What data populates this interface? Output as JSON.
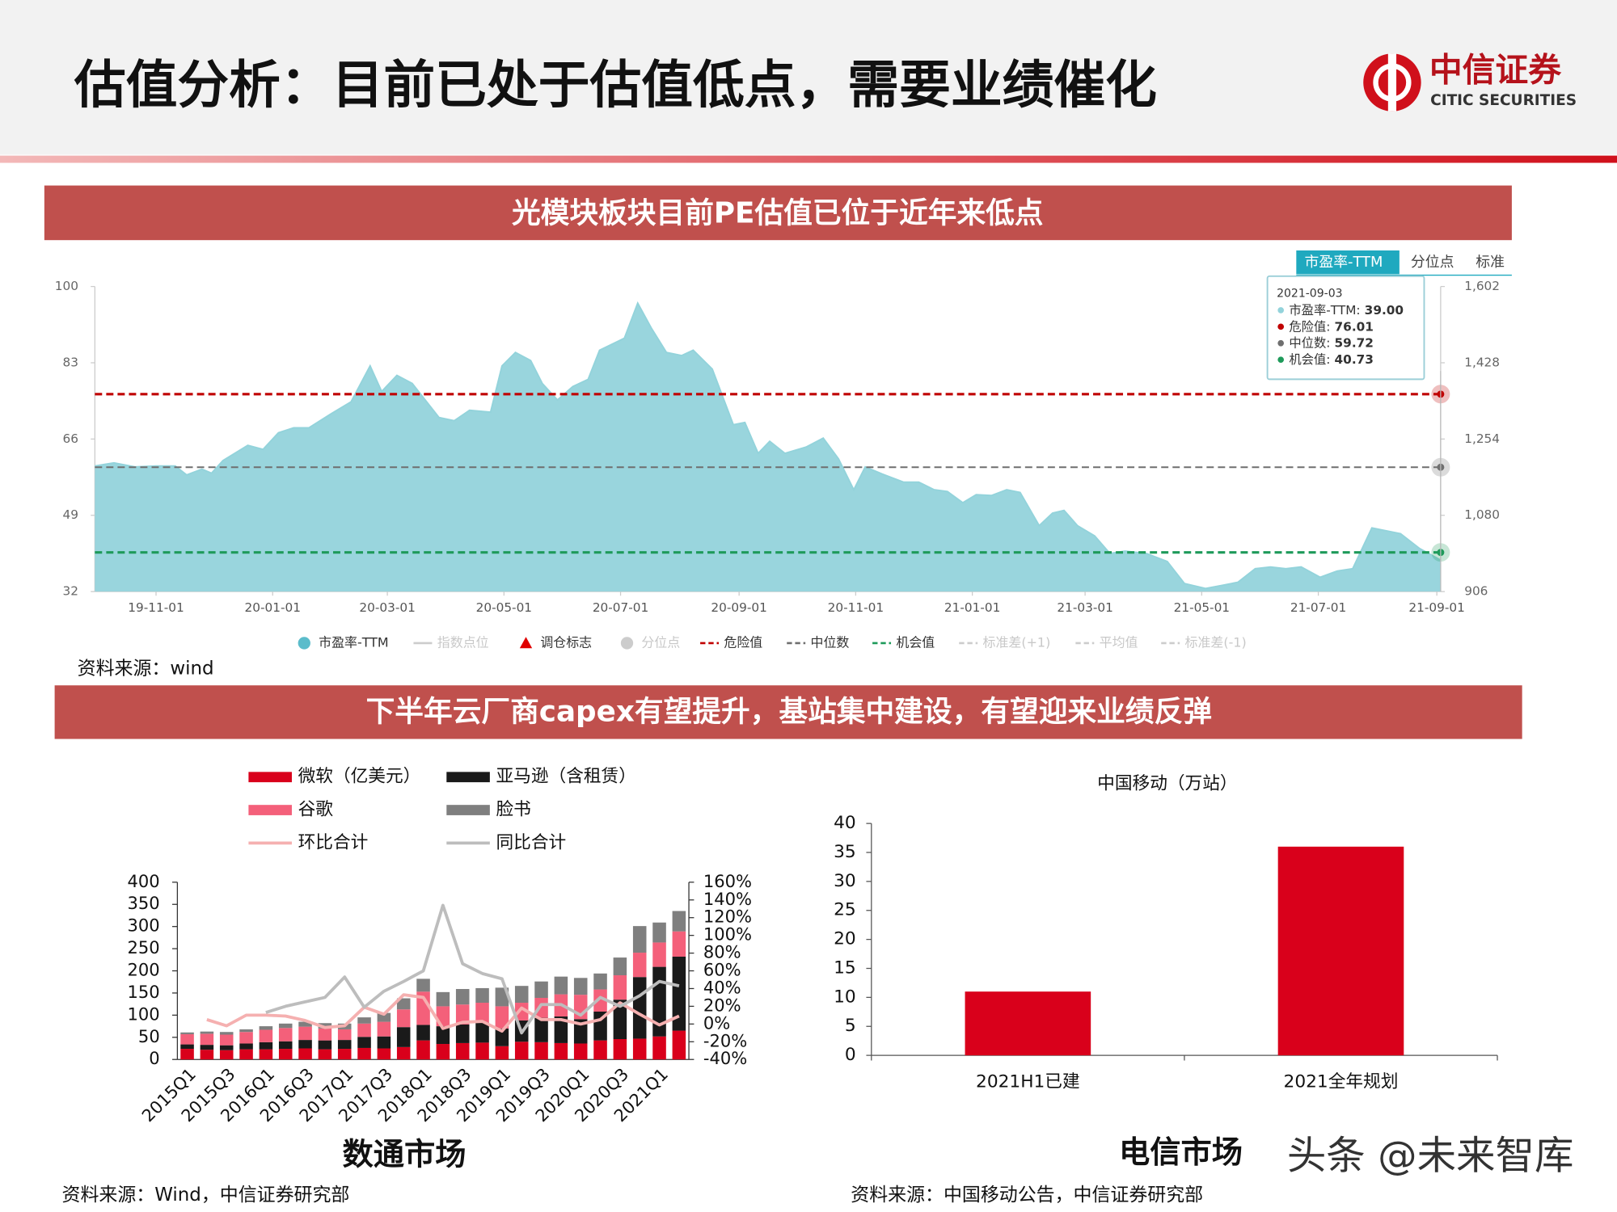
{
  "header": {
    "title": "估值分析：目前已处于估值低点，需要业绩催化",
    "logo_cn": "中信证券",
    "logo_en": "CITIC SECURITIES"
  },
  "sections": [
    {
      "banner": "光模块板块目前PE估值已位于近年来低点"
    },
    {
      "banner": "下半年云厂商capex有望提升，基站集中建设，有望迎来业绩反弹"
    }
  ],
  "sources": [
    "资料来源：wind",
    "资料来源：Wind，中信证券研究部",
    "资料来源：中国移动公告，中信证券研究部"
  ],
  "market_labels": [
    "数通市场",
    "电信市场"
  ],
  "watermark": "头条 @未来智库",
  "chart_data": [
    {
      "type": "area",
      "tabs": [
        "市盈率-TTM",
        "分位点",
        "标准"
      ],
      "x": [
        "19-09-30",
        "19-10-10",
        "19-10-21",
        "19-11-01",
        "19-11-11",
        "19-11-17",
        "19-11-25",
        "19-11-30",
        "19-12-06",
        "19-12-19",
        "19-12-27",
        "20-01-04",
        "20-01-12",
        "20-01-20",
        "20-01-31",
        "20-02-11",
        "20-02-21",
        "20-02-27",
        "20-03-06",
        "20-03-14",
        "20-03-28",
        "20-04-05",
        "20-04-13",
        "20-04-24",
        "20-04-30",
        "20-05-07",
        "20-05-15",
        "20-05-21",
        "20-05-29",
        "20-06-06",
        "20-06-14",
        "20-06-20",
        "20-07-03",
        "20-07-10",
        "20-07-17",
        "20-07-25",
        "20-08-02",
        "20-08-08",
        "20-08-18",
        "20-08-29",
        "20-09-04",
        "20-09-11",
        "20-09-17",
        "20-09-25",
        "20-10-06",
        "20-10-15",
        "20-10-23",
        "20-10-31",
        "20-11-06",
        "20-11-15",
        "20-11-26",
        "20-12-04",
        "20-12-12",
        "20-12-19",
        "20-12-27",
        "21-01-03",
        "21-01-11",
        "21-01-19",
        "21-01-26",
        "21-02-05",
        "21-02-12",
        "21-02-18",
        "21-02-25",
        "21-03-06",
        "21-03-14",
        "21-03-22",
        "21-04-02",
        "21-04-13",
        "21-04-22",
        "21-05-03",
        "21-05-12",
        "21-05-20",
        "21-05-29",
        "21-06-06",
        "21-06-14",
        "21-06-22",
        "21-07-02",
        "21-07-11",
        "21-07-19",
        "21-07-29",
        "21-08-13",
        "21-08-23",
        "21-09-03"
      ],
      "series": [
        {
          "name": "市盈率-TTM",
          "color": "#93d3db",
          "values": [
            60.0,
            60.7,
            59.8,
            60.0,
            60.0,
            58.0,
            59.3,
            58.4,
            61.2,
            64.6,
            63.7,
            67.4,
            68.5,
            68.5,
            71.5,
            74.3,
            82.3,
            76.6,
            80.2,
            78.4,
            70.8,
            70.1,
            72.4,
            72.0,
            82.3,
            85.3,
            83.5,
            78.4,
            74.7,
            77.7,
            79.3,
            85.8,
            88.5,
            96.3,
            90.8,
            85.3,
            84.6,
            85.8,
            81.6,
            69.2,
            69.7,
            62.8,
            65.5,
            62.8,
            64.2,
            66.2,
            61.6,
            54.7,
            59.8,
            58.2,
            56.4,
            56.4,
            54.7,
            54.3,
            51.8,
            53.6,
            53.4,
            54.7,
            54.1,
            46.7,
            49.5,
            50.1,
            46.7,
            44.4,
            40.5,
            41.0,
            40.5,
            38.7,
            33.8,
            32.7,
            33.4,
            34.1,
            37.1,
            37.5,
            37.1,
            37.5,
            35.2,
            36.6,
            37.1,
            46.2,
            44.9,
            41.6,
            39
          ]
        }
      ],
      "reference_lines": [
        {
          "name": "危险值",
          "value": 76.01,
          "color": "#c00000"
        },
        {
          "name": "中位数",
          "value": 59.72,
          "color": "#6f6f6f"
        },
        {
          "name": "机会值",
          "value": 40.73,
          "color": "#1e9a5a"
        }
      ],
      "xlim": [
        "19-09-30",
        "21-09-03"
      ],
      "xticks": [
        "19-11-01",
        "20-01-01",
        "20-03-01",
        "20-05-01",
        "20-07-01",
        "20-09-01",
        "20-11-01",
        "21-01-01",
        "21-03-01",
        "21-05-01",
        "21-07-01",
        "21-09-01"
      ],
      "ylim": [
        32,
        100
      ],
      "yticks": [
        32,
        49,
        66,
        83,
        100
      ],
      "y2lim": [
        906,
        1602
      ],
      "y2ticks": [
        906,
        {
          "value": 1080,
          "label": "1,080"
        },
        {
          "value": 1254,
          "label": "1,254"
        },
        {
          "value": 1428,
          "label": "1,428"
        },
        {
          "value": 1602,
          "label": "1,602"
        }
      ],
      "tooltip": {
        "date": "2021-09-03",
        "items": [
          {
            "label": "市盈率-TTM:",
            "value": "39.00",
            "color": "#93d3db"
          },
          {
            "label": "危险值:",
            "value": "76.01",
            "color": "#c00000"
          },
          {
            "label": "中位数:",
            "value": "59.72",
            "color": "#6f6f6f"
          },
          {
            "label": "机会值:",
            "value": "40.73",
            "color": "#1e9a5a"
          }
        ]
      },
      "legend": [
        {
          "name": "市盈率-TTM",
          "symbol": "circle",
          "color": "#5bbccb",
          "active": true
        },
        {
          "name": "指数点位",
          "symbol": "line",
          "color": "#cccccc",
          "active": false
        },
        {
          "name": "调仓标志",
          "symbol": "triangle",
          "color": "#e00000",
          "active": true
        },
        {
          "name": "分位点",
          "symbol": "circle",
          "color": "#cccccc",
          "active": false
        },
        {
          "name": "危险值",
          "symbol": "dash",
          "color": "#c00000",
          "active": true
        },
        {
          "name": "中位数",
          "symbol": "dash",
          "color": "#6f6f6f",
          "active": true
        },
        {
          "name": "机会值",
          "symbol": "dash",
          "color": "#1e9a5a",
          "active": true
        },
        {
          "name": "标准差(+1)",
          "symbol": "dash",
          "color": "#cccccc",
          "active": false
        },
        {
          "name": "平均值",
          "symbol": "dash",
          "color": "#cccccc",
          "active": false
        },
        {
          "name": "标准差(-1)",
          "symbol": "dash",
          "color": "#cccccc",
          "active": false
        }
      ]
    },
    {
      "type": "combo",
      "categories": [
        "2015Q1",
        null,
        "2015Q3",
        null,
        "2016Q1",
        null,
        "2016Q3",
        null,
        "2017Q1",
        null,
        "2017Q3",
        null,
        "2018Q1",
        null,
        "2018Q3",
        null,
        "2019Q1",
        null,
        "2019Q3",
        null,
        "2020Q1",
        null,
        "2020Q3",
        null,
        "2021Q1",
        null
      ],
      "series": [
        {
          "name": "微软（亿美元）",
          "color": "#d9001b",
          "values": [
            24,
            22,
            21,
            23,
            23,
            24,
            25,
            23,
            24,
            26,
            25,
            28,
            43,
            35,
            37,
            38,
            30,
            40,
            39,
            37,
            36,
            43,
            46,
            47,
            52,
            65
          ]
        },
        {
          "name": "亚马逊（含租赁）",
          "color": "#1a1a1a",
          "values": [
            10,
            11,
            11,
            13,
            16,
            17,
            19,
            20,
            20,
            25,
            27,
            45,
            35,
            40,
            42,
            45,
            40,
            48,
            55,
            60,
            55,
            65,
            89,
            139,
            157,
            167
          ]
        },
        {
          "name": "谷歌",
          "color": "#f4607a",
          "values": [
            23,
            25,
            24,
            26,
            28,
            30,
            30,
            27,
            24,
            30,
            33,
            40,
            75,
            45,
            45,
            45,
            50,
            40,
            45,
            50,
            55,
            50,
            55,
            55,
            55,
            57
          ]
        },
        {
          "name": "脸书",
          "color": "#7f7f7f",
          "values": [
            4,
            5,
            6,
            6,
            8,
            10,
            11,
            12,
            13,
            14,
            20,
            25,
            29,
            32,
            35,
            33,
            42,
            38,
            37,
            40,
            38,
            36,
            40,
            60,
            45,
            46
          ]
        },
        {
          "name": "环比合计",
          "color": "#f5b0b0",
          "axis": "y2",
          "values": [
            null,
            5,
            -2,
            10,
            10,
            9,
            4,
            -4,
            -2,
            19,
            11,
            33,
            30,
            -5,
            2,
            3,
            -8,
            18,
            5,
            5,
            0,
            5,
            24,
            11,
            -1,
            9
          ]
        },
        {
          "name": "同比合计",
          "color": "#bdbdbd",
          "axis": "y2",
          "values": [
            null,
            null,
            null,
            null,
            13,
            20,
            25,
            30,
            53,
            19,
            37,
            48,
            60,
            134,
            68,
            57,
            51,
            -10,
            22,
            22,
            10,
            30,
            20,
            32,
            48,
            43
          ]
        }
      ],
      "ylim": [
        0,
        400
      ],
      "yticks": [
        0,
        50,
        100,
        150,
        200,
        250,
        300,
        350,
        400
      ],
      "y2lim": [
        -40,
        160
      ],
      "y2ticks": [
        {
          "value": -40,
          "label": "-40%"
        },
        {
          "value": -20,
          "label": "-20%"
        },
        {
          "value": 0,
          "label": "0%"
        },
        {
          "value": 20,
          "label": "20%"
        },
        {
          "value": 40,
          "label": "40%"
        },
        {
          "value": 60,
          "label": "60%"
        },
        {
          "value": 80,
          "label": "80%"
        },
        {
          "value": 100,
          "label": "100%"
        },
        {
          "value": 120,
          "label": "120%"
        },
        {
          "value": 140,
          "label": "140%"
        },
        {
          "value": 160,
          "label": "160%"
        }
      ]
    },
    {
      "type": "bar",
      "title": "中国移动（万站）",
      "categories": [
        "2021H1已建",
        "2021全年规划"
      ],
      "values": [
        11,
        36
      ],
      "color": "#d9001b",
      "ylim": [
        0,
        40
      ],
      "yticks": [
        0,
        5,
        10,
        15,
        20,
        25,
        30,
        35,
        40
      ]
    }
  ]
}
